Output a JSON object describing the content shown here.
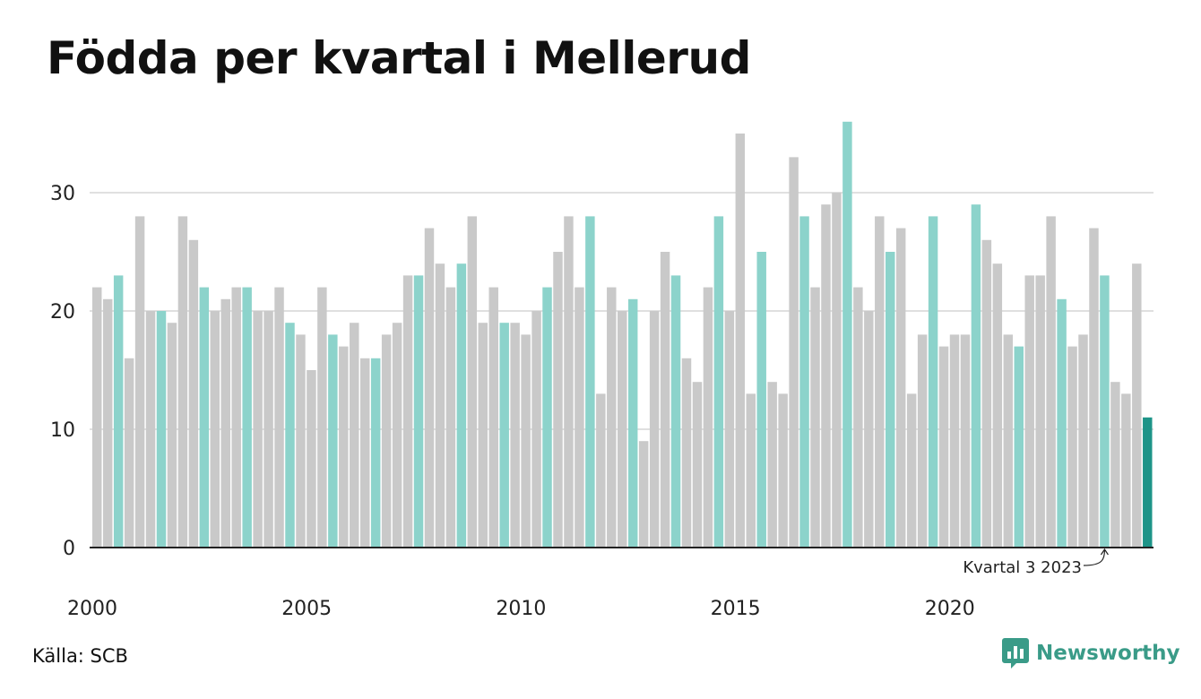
{
  "title": "Födda per kvartal i Mellerud",
  "source": "Källa: SCB",
  "brand": {
    "name": "Newsworthy",
    "icon": "newsworthy-logo-icon",
    "color": "#3a9b88"
  },
  "colors": {
    "default": "#c9c9c9",
    "same_quarter": "#8cd3cb",
    "latest": "#1e9488",
    "grid": "#e0e0e0",
    "axis": "#222222"
  },
  "chart_data": {
    "type": "bar",
    "title": "Födda per kvartal i Mellerud",
    "xlabel": "",
    "ylabel": "",
    "ylim": [
      0,
      37
    ],
    "yticks": [
      0,
      10,
      20,
      30
    ],
    "grid": true,
    "legend": "none",
    "x_tick_labels": [
      "2000",
      "2005",
      "2010",
      "2015",
      "2020"
    ],
    "annotation": {
      "text": "Kvartal 3 2023",
      "target": "2023 Q3"
    },
    "highlight_quarter": 3,
    "latest": "2024 Q3",
    "categories": [
      "2000 Q1",
      "2000 Q2",
      "2000 Q3",
      "2000 Q4",
      "2001 Q1",
      "2001 Q2",
      "2001 Q3",
      "2001 Q4",
      "2002 Q1",
      "2002 Q2",
      "2002 Q3",
      "2002 Q4",
      "2003 Q1",
      "2003 Q2",
      "2003 Q3",
      "2003 Q4",
      "2004 Q1",
      "2004 Q2",
      "2004 Q3",
      "2004 Q4",
      "2005 Q1",
      "2005 Q2",
      "2005 Q3",
      "2005 Q4",
      "2006 Q1",
      "2006 Q2",
      "2006 Q3",
      "2006 Q4",
      "2007 Q1",
      "2007 Q2",
      "2007 Q3",
      "2007 Q4",
      "2008 Q1",
      "2008 Q2",
      "2008 Q3",
      "2008 Q4",
      "2009 Q1",
      "2009 Q2",
      "2009 Q3",
      "2009 Q4",
      "2010 Q1",
      "2010 Q2",
      "2010 Q3",
      "2010 Q4",
      "2011 Q1",
      "2011 Q2",
      "2011 Q3",
      "2011 Q4",
      "2012 Q1",
      "2012 Q2",
      "2012 Q3",
      "2012 Q4",
      "2013 Q1",
      "2013 Q2",
      "2013 Q3",
      "2013 Q4",
      "2014 Q1",
      "2014 Q2",
      "2014 Q3",
      "2014 Q4",
      "2015 Q1",
      "2015 Q2",
      "2015 Q3",
      "2015 Q4",
      "2016 Q1",
      "2016 Q2",
      "2016 Q3",
      "2016 Q4",
      "2017 Q1",
      "2017 Q2",
      "2017 Q3",
      "2017 Q4",
      "2018 Q1",
      "2018 Q2",
      "2018 Q3",
      "2018 Q4",
      "2019 Q1",
      "2019 Q2",
      "2019 Q3",
      "2019 Q4",
      "2020 Q1",
      "2020 Q2",
      "2020 Q3",
      "2020 Q4",
      "2021 Q1",
      "2021 Q2",
      "2021 Q3",
      "2021 Q4",
      "2022 Q1",
      "2022 Q2",
      "2022 Q3",
      "2022 Q4",
      "2023 Q1",
      "2023 Q2",
      "2023 Q3",
      "2023 Q4",
      "2024 Q1",
      "2024 Q2",
      "2024 Q3"
    ],
    "values": [
      22,
      21,
      23,
      16,
      28,
      20,
      20,
      19,
      28,
      26,
      22,
      20,
      21,
      22,
      22,
      20,
      20,
      22,
      19,
      18,
      15,
      22,
      18,
      17,
      19,
      16,
      16,
      18,
      19,
      23,
      23,
      27,
      24,
      22,
      24,
      28,
      19,
      22,
      19,
      19,
      18,
      20,
      22,
      25,
      28,
      22,
      28,
      13,
      22,
      20,
      21,
      9,
      20,
      25,
      23,
      16,
      14,
      22,
      28,
      20,
      35,
      13,
      25,
      14,
      13,
      33,
      28,
      22,
      29,
      30,
      36,
      22,
      20,
      28,
      25,
      27,
      13,
      18,
      28,
      17,
      18,
      18,
      29,
      26,
      24,
      18,
      17,
      23,
      23,
      28,
      21,
      17,
      18,
      27,
      23,
      14,
      13,
      24,
      11
    ]
  }
}
